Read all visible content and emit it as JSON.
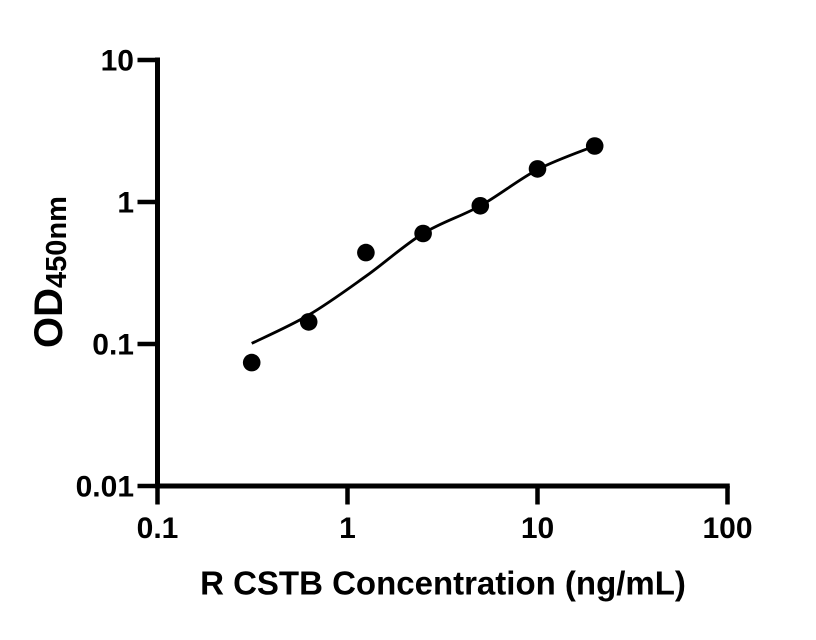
{
  "page": {
    "background": "#ffffff",
    "foreground": "#000000"
  },
  "chart_data": {
    "type": "scatter",
    "title": "",
    "xlabel": "R CSTB Concentration (ng/mL)",
    "ylabel_main": "OD",
    "ylabel_sub": "450nm",
    "xscale": "log",
    "yscale": "log",
    "xlim": [
      0.1,
      100
    ],
    "ylim": [
      0.01,
      10
    ],
    "x_ticks": [
      0.1,
      1,
      10,
      100
    ],
    "x_tick_labels": [
      "0.1",
      "1",
      "10",
      "100"
    ],
    "y_ticks": [
      0.01,
      0.1,
      1,
      10
    ],
    "y_tick_labels": [
      "0.01",
      "0.1",
      "1",
      "10"
    ],
    "grid": false,
    "legend": false,
    "series": [
      {
        "name": "standard-data-points",
        "kind": "scatter",
        "marker": "filled-circle",
        "color": "#000000",
        "points": [
          {
            "x": 0.313,
            "y": 0.074
          },
          {
            "x": 0.625,
            "y": 0.143
          },
          {
            "x": 1.25,
            "y": 0.44
          },
          {
            "x": 2.5,
            "y": 0.6
          },
          {
            "x": 5,
            "y": 0.94
          },
          {
            "x": 10,
            "y": 1.71
          },
          {
            "x": 20,
            "y": 2.48
          }
        ]
      },
      {
        "name": "fit-curve",
        "kind": "line",
        "color": "#000000",
        "points": [
          {
            "x": 0.313,
            "y": 0.101
          },
          {
            "x": 0.625,
            "y": 0.16
          },
          {
            "x": 1.25,
            "y": 0.3
          },
          {
            "x": 2.5,
            "y": 0.6
          },
          {
            "x": 5,
            "y": 0.94
          },
          {
            "x": 10,
            "y": 1.69
          },
          {
            "x": 20,
            "y": 2.48
          }
        ]
      }
    ]
  }
}
